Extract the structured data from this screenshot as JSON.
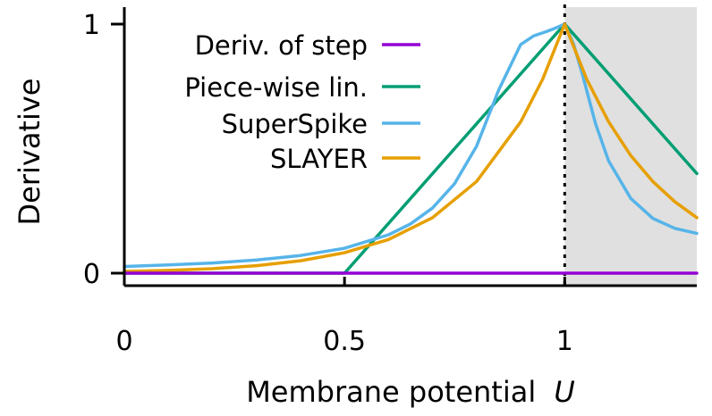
{
  "chart_data": {
    "type": "line",
    "title": "",
    "xlabel": "Membrane potential",
    "xlabel_var": "U",
    "ylabel": "Derivative",
    "xlim": [
      0,
      1.3
    ],
    "ylim": [
      0,
      1
    ],
    "xticks": [
      {
        "value": 0,
        "label": "0"
      },
      {
        "value": 0.5,
        "label": "0.5"
      },
      {
        "value": 1,
        "label": "1"
      }
    ],
    "yticks": [
      {
        "value": 0,
        "label": "0"
      },
      {
        "value": 1,
        "label": "1"
      }
    ],
    "grid": false,
    "legend_position": "top-left",
    "threshold": {
      "x": 1,
      "style": "dotted",
      "shaded_region": [
        1,
        1.3
      ],
      "shade_color": "#e0e0e0"
    },
    "series": [
      {
        "name": "Deriv. of step",
        "color": "#9400d3",
        "x": [
          0,
          1.3
        ],
        "y": [
          0,
          0
        ]
      },
      {
        "name": "Piece-wise lin.",
        "color": "#009e73",
        "x": [
          0,
          0.5,
          1,
          1.3
        ],
        "y": [
          0,
          0,
          1,
          0.4
        ]
      },
      {
        "name": "SuperSpike",
        "color": "#56b4e9",
        "x": [
          0,
          0.1,
          0.2,
          0.3,
          0.4,
          0.5,
          0.6,
          0.65,
          0.7,
          0.75,
          0.8,
          0.85,
          0.9,
          0.93,
          0.96,
          0.98,
          1,
          1.02,
          1.04,
          1.07,
          1.1,
          1.15,
          1.2,
          1.25,
          1.3
        ],
        "y": [
          0.027,
          0.033,
          0.041,
          0.053,
          0.071,
          0.1,
          0.154,
          0.198,
          0.262,
          0.359,
          0.51,
          0.735,
          0.918,
          0.953,
          0.971,
          0.985,
          1,
          0.92,
          0.8,
          0.6,
          0.45,
          0.3,
          0.22,
          0.18,
          0.16
        ]
      },
      {
        "name": "SLAYER",
        "color": "#e69f00",
        "x": [
          0,
          0.1,
          0.2,
          0.3,
          0.4,
          0.5,
          0.6,
          0.7,
          0.8,
          0.9,
          0.95,
          1,
          1.05,
          1.1,
          1.15,
          1.2,
          1.25,
          1.3
        ],
        "y": [
          0.007,
          0.011,
          0.018,
          0.03,
          0.05,
          0.082,
          0.135,
          0.223,
          0.368,
          0.607,
          0.779,
          1,
          0.779,
          0.607,
          0.472,
          0.368,
          0.287,
          0.223
        ]
      }
    ]
  }
}
